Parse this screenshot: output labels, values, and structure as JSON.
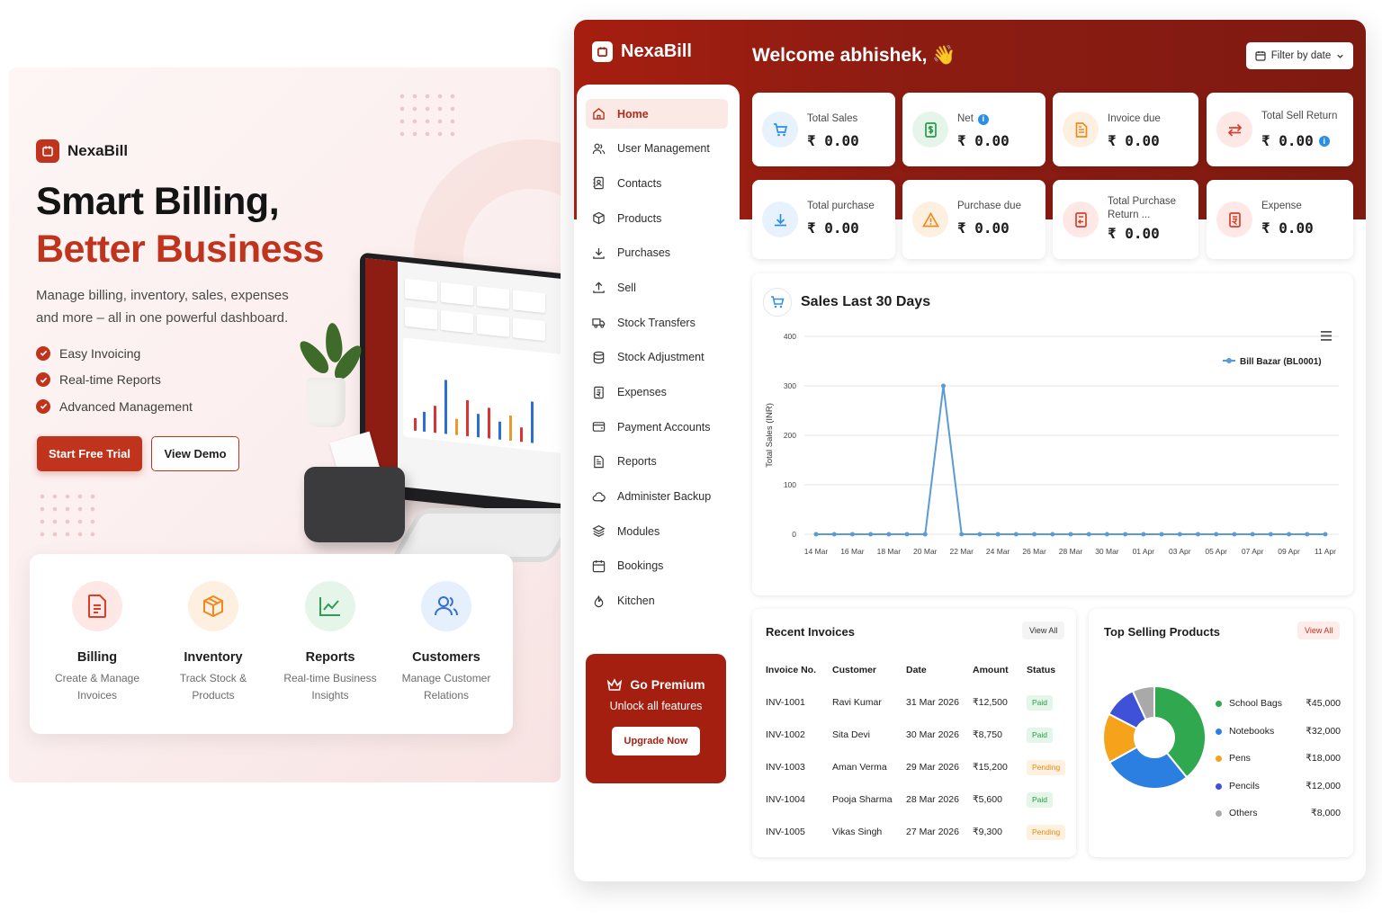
{
  "hero": {
    "brand": "NexaBill",
    "title_line1": "Smart Billing,",
    "title_line2": "Better Business",
    "description": "Manage billing, inventory, sales, expenses and more – all in one powerful dashboard.",
    "features": [
      "Easy Invoicing",
      "Real-time Reports",
      "Advanced Management"
    ],
    "cta_primary": "Start Free Trial",
    "cta_secondary": "View Demo",
    "accent_color": "#c0341d"
  },
  "feature_cards": [
    {
      "title": "Billing",
      "desc1": "Create & Manage",
      "desc2": "Invoices",
      "icon": "document-icon",
      "color": "#d8402b",
      "bg": "#fde8e6"
    },
    {
      "title": "Inventory",
      "desc1": "Track Stock &",
      "desc2": "Products",
      "icon": "box-icon",
      "color": "#ee8a1f",
      "bg": "#fdf0e1"
    },
    {
      "title": "Reports",
      "desc1": "Real-time Business",
      "desc2": "Insights",
      "icon": "trend-chart-icon",
      "color": "#2f9d52",
      "bg": "#e6f5ea"
    },
    {
      "title": "Customers",
      "desc1": "Manage Customer",
      "desc2": "Relations",
      "icon": "users-icon",
      "color": "#2f6fd6",
      "bg": "#e6effc"
    }
  ],
  "dashboard": {
    "brand": "NexaBill",
    "welcome": "Welcome abhishek, 👋",
    "filter_label": "Filter by date",
    "nav": [
      {
        "label": "Home",
        "icon": "home-icon",
        "active": true
      },
      {
        "label": "User Management",
        "icon": "users-icon"
      },
      {
        "label": "Contacts",
        "icon": "contacts-icon"
      },
      {
        "label": "Products",
        "icon": "cube-icon"
      },
      {
        "label": "Purchases",
        "icon": "download-icon"
      },
      {
        "label": "Sell",
        "icon": "upload-icon"
      },
      {
        "label": "Stock Transfers",
        "icon": "truck-icon"
      },
      {
        "label": "Stock Adjustment",
        "icon": "database-icon"
      },
      {
        "label": "Expenses",
        "icon": "receipt-icon"
      },
      {
        "label": "Payment Accounts",
        "icon": "wallet-icon"
      },
      {
        "label": "Reports",
        "icon": "report-icon"
      },
      {
        "label": "Administer Backup",
        "icon": "cloud-icon"
      },
      {
        "label": "Modules",
        "icon": "layers-icon"
      },
      {
        "label": "Bookings",
        "icon": "calendar-icon"
      },
      {
        "label": "Kitchen",
        "icon": "flame-icon"
      }
    ],
    "premium": {
      "title": "Go Premium",
      "subtitle": "Unlock all features",
      "button": "Upgrade Now"
    },
    "stats": [
      {
        "label": "Total Sales",
        "value": "₹ 0.00",
        "icon": "cart-icon",
        "color": "#2b8fe5",
        "bg": "#e8f2fc",
        "info": false
      },
      {
        "label": "Net",
        "value": "₹ 0.00",
        "icon": "money-bill-icon",
        "color": "#2a9a48",
        "bg": "#e5f5ea",
        "info": true
      },
      {
        "label": "Invoice due",
        "value": "₹ 0.00",
        "icon": "invoice-icon",
        "color": "#ee8a1f",
        "bg": "#fdf0e1",
        "info": false
      },
      {
        "label": "Total Sell Return",
        "value": "₹ 0.00",
        "icon": "swap-icon",
        "color": "#d8402b",
        "bg": "#fde8e6",
        "info_value": true
      },
      {
        "label": "Total purchase",
        "value": "₹ 0.00",
        "icon": "download-icon",
        "color": "#2b8fe5",
        "bg": "#e8f2fc"
      },
      {
        "label": "Purchase due",
        "value": "₹ 0.00",
        "icon": "warning-icon",
        "color": "#ee8a1f",
        "bg": "#fdf0e1"
      },
      {
        "label": "Total Purchase Return ...",
        "value": "₹ 0.00",
        "icon": "return-icon",
        "color": "#d8402b",
        "bg": "#fde8e6"
      },
      {
        "label": "Expense",
        "value": "₹ 0.00",
        "icon": "expense-icon",
        "color": "#d8402b",
        "bg": "#fde8e6"
      }
    ],
    "sales_chart_title": "Sales Last 30 Days",
    "recent_invoices": {
      "title": "Recent Invoices",
      "view_all": "View All",
      "headers": [
        "Invoice No.",
        "Customer",
        "Date",
        "Amount",
        "Status"
      ],
      "rows": [
        {
          "no": "INV-1001",
          "customer": "Ravi Kumar",
          "date": "31 Mar 2026",
          "amount": "₹12,500",
          "status": "Paid"
        },
        {
          "no": "INV-1002",
          "customer": "Sita Devi",
          "date": "30 Mar 2026",
          "amount": "₹8,750",
          "status": "Paid"
        },
        {
          "no": "INV-1003",
          "customer": "Aman Verma",
          "date": "29 Mar 2026",
          "amount": "₹15,200",
          "status": "Pending"
        },
        {
          "no": "INV-1004",
          "customer": "Pooja Sharma",
          "date": "28 Mar 2026",
          "amount": "₹5,600",
          "status": "Paid"
        },
        {
          "no": "INV-1005",
          "customer": "Vikas Singh",
          "date": "27 Mar 2026",
          "amount": "₹9,300",
          "status": "Pending"
        }
      ]
    },
    "top_products": {
      "title": "Top Selling Products",
      "view_all": "View All"
    }
  },
  "chart_data": [
    {
      "type": "line",
      "title": "Sales Last 30 Days",
      "ylabel": "Total Sales (INR)",
      "xlabel": "",
      "ylim": [
        0,
        400
      ],
      "yticks": [
        0,
        100,
        200,
        300,
        400
      ],
      "x": [
        "14 Mar",
        "15 Mar",
        "16 Mar",
        "17 Mar",
        "18 Mar",
        "19 Mar",
        "20 Mar",
        "21 Mar",
        "22 Mar",
        "23 Mar",
        "24 Mar",
        "25 Mar",
        "26 Mar",
        "27 Mar",
        "28 Mar",
        "29 Mar",
        "30 Mar",
        "31 Mar",
        "01 Apr",
        "02 Apr",
        "03 Apr",
        "04 Apr",
        "05 Apr",
        "06 Apr",
        "07 Apr",
        "08 Apr",
        "09 Apr",
        "10 Apr",
        "11 Apr"
      ],
      "xtick_labels": [
        "14 Mar",
        "16 Mar",
        "18 Mar",
        "20 Mar",
        "22 Mar",
        "24 Mar",
        "26 Mar",
        "28 Mar",
        "30 Mar",
        "01 Apr",
        "03 Apr",
        "05 Apr",
        "07 Apr",
        "09 Apr",
        "11 Apr"
      ],
      "series": [
        {
          "name": "Bill Bazar (BL0001)",
          "color": "#5b9bd5",
          "values": [
            0,
            0,
            0,
            0,
            0,
            0,
            0,
            300,
            0,
            0,
            0,
            0,
            0,
            0,
            0,
            0,
            0,
            0,
            0,
            0,
            0,
            0,
            0,
            0,
            0,
            0,
            0,
            0,
            0
          ]
        }
      ],
      "legend": "top-right",
      "grid": true
    },
    {
      "type": "pie",
      "title": "Top Selling Products",
      "categories": [
        "School Bags",
        "Notebooks",
        "Pens",
        "Pencils",
        "Others"
      ],
      "values": [
        45000,
        32000,
        18000,
        12000,
        8000
      ],
      "labels": [
        "₹45,000",
        "₹32,000",
        "₹18,000",
        "₹12,000",
        "₹8,000"
      ],
      "colors": [
        "#2fa84f",
        "#2b7fe0",
        "#f5a31a",
        "#3f51d8",
        "#a9a9a9"
      ]
    }
  ]
}
